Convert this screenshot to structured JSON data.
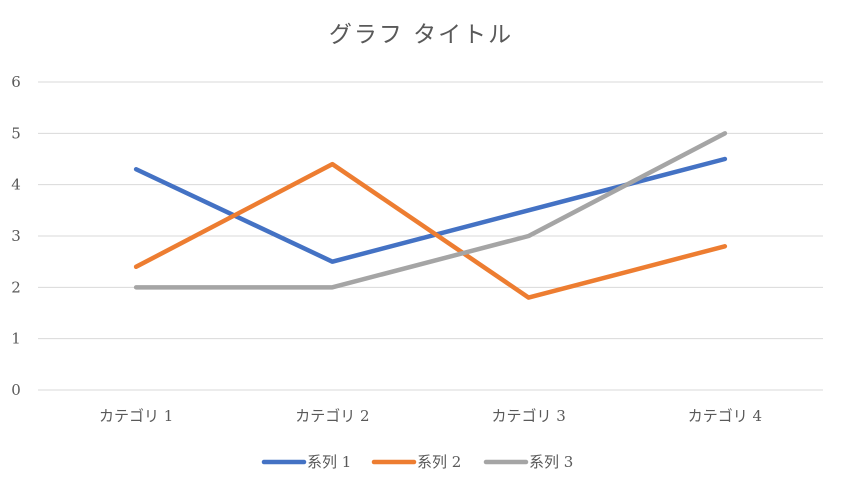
{
  "chart_data": {
    "type": "line",
    "title": "グラフ タイトル",
    "xlabel": "",
    "ylabel": "",
    "categories": [
      "カテゴリ 1",
      "カテゴリ 2",
      "カテゴリ 3",
      "カテゴリ 4"
    ],
    "ylim": [
      0,
      6
    ],
    "yticks": [
      "0",
      "1",
      "2",
      "3",
      "4",
      "5",
      "6"
    ],
    "grid": true,
    "legend_position": "bottom",
    "series": [
      {
        "name": "系列 1",
        "values": [
          4.3,
          2.5,
          3.5,
          4.5
        ],
        "color": "#4472c4"
      },
      {
        "name": "系列 2",
        "values": [
          2.4,
          4.4,
          1.8,
          2.8
        ],
        "color": "#ed7d31"
      },
      {
        "name": "系列 3",
        "values": [
          2,
          2,
          3,
          5
        ],
        "color": "#a5a5a5"
      }
    ]
  }
}
